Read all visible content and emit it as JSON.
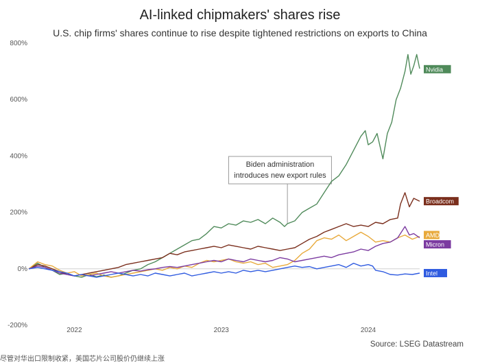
{
  "chart_data": {
    "type": "line",
    "title": "AI-linked chipmakers' shares rise",
    "subtitle": "U.S. chip firms' shares continue to rise despite tightened restrictions on exports to China",
    "ylabel": "",
    "xlabel": "",
    "ylim": [
      -200,
      800
    ],
    "y_ticks": [
      -200,
      0,
      200,
      400,
      600,
      800
    ],
    "y_tick_labels": [
      "-200%",
      "0%",
      "200%",
      "400%",
      "600%",
      "800%"
    ],
    "x_range": [
      2021.69,
      2024.35
    ],
    "x_ticks": [
      2022,
      2023,
      2024
    ],
    "x_tick_labels": [
      "2022",
      "2023",
      "2024"
    ],
    "annotation": {
      "text": [
        "Biden administration",
        "introduces new export rules"
      ],
      "x": 2023.45,
      "y": 160,
      "box_center": [
        2023.4,
        350
      ]
    },
    "series": [
      {
        "name": "Nvidia",
        "color": "#4f8a5a",
        "points": [
          [
            2021.69,
            0
          ],
          [
            2021.75,
            20
          ],
          [
            2021.8,
            5
          ],
          [
            2021.85,
            -5
          ],
          [
            2021.9,
            -20
          ],
          [
            2021.95,
            -15
          ],
          [
            2022.0,
            -25
          ],
          [
            2022.05,
            -30
          ],
          [
            2022.1,
            -20
          ],
          [
            2022.15,
            -28
          ],
          [
            2022.2,
            -22
          ],
          [
            2022.25,
            -30
          ],
          [
            2022.3,
            -25
          ],
          [
            2022.35,
            -15
          ],
          [
            2022.4,
            -5
          ],
          [
            2022.45,
            0
          ],
          [
            2022.5,
            15
          ],
          [
            2022.55,
            25
          ],
          [
            2022.6,
            40
          ],
          [
            2022.65,
            55
          ],
          [
            2022.7,
            70
          ],
          [
            2022.75,
            85
          ],
          [
            2022.8,
            100
          ],
          [
            2022.85,
            105
          ],
          [
            2022.9,
            125
          ],
          [
            2022.95,
            150
          ],
          [
            2023.0,
            145
          ],
          [
            2023.05,
            160
          ],
          [
            2023.1,
            155
          ],
          [
            2023.15,
            170
          ],
          [
            2023.2,
            165
          ],
          [
            2023.25,
            175
          ],
          [
            2023.3,
            160
          ],
          [
            2023.35,
            180
          ],
          [
            2023.4,
            165
          ],
          [
            2023.43,
            150
          ],
          [
            2023.45,
            160
          ],
          [
            2023.5,
            170
          ],
          [
            2023.55,
            200
          ],
          [
            2023.6,
            215
          ],
          [
            2023.65,
            230
          ],
          [
            2023.7,
            270
          ],
          [
            2023.75,
            310
          ],
          [
            2023.8,
            330
          ],
          [
            2023.85,
            370
          ],
          [
            2023.9,
            420
          ],
          [
            2023.95,
            470
          ],
          [
            2023.98,
            490
          ],
          [
            2024.0,
            440
          ],
          [
            2024.03,
            450
          ],
          [
            2024.06,
            480
          ],
          [
            2024.1,
            390
          ],
          [
            2024.13,
            480
          ],
          [
            2024.16,
            520
          ],
          [
            2024.19,
            600
          ],
          [
            2024.22,
            640
          ],
          [
            2024.25,
            700
          ],
          [
            2024.27,
            760
          ],
          [
            2024.29,
            690
          ],
          [
            2024.31,
            720
          ],
          [
            2024.33,
            760
          ],
          [
            2024.35,
            710
          ]
        ]
      },
      {
        "name": "Broadcom",
        "color": "#7a2e1c",
        "points": [
          [
            2021.69,
            0
          ],
          [
            2021.75,
            15
          ],
          [
            2021.8,
            10
          ],
          [
            2021.85,
            0
          ],
          [
            2021.9,
            -10
          ],
          [
            2021.95,
            -20
          ],
          [
            2022.0,
            -25
          ],
          [
            2022.05,
            -20
          ],
          [
            2022.1,
            -15
          ],
          [
            2022.15,
            -10
          ],
          [
            2022.2,
            -5
          ],
          [
            2022.25,
            0
          ],
          [
            2022.3,
            5
          ],
          [
            2022.35,
            15
          ],
          [
            2022.4,
            20
          ],
          [
            2022.45,
            25
          ],
          [
            2022.5,
            30
          ],
          [
            2022.55,
            35
          ],
          [
            2022.6,
            40
          ],
          [
            2022.65,
            55
          ],
          [
            2022.7,
            50
          ],
          [
            2022.75,
            60
          ],
          [
            2022.8,
            65
          ],
          [
            2022.85,
            70
          ],
          [
            2022.9,
            75
          ],
          [
            2022.95,
            80
          ],
          [
            2023.0,
            75
          ],
          [
            2023.05,
            85
          ],
          [
            2023.1,
            80
          ],
          [
            2023.15,
            75
          ],
          [
            2023.2,
            70
          ],
          [
            2023.25,
            80
          ],
          [
            2023.3,
            75
          ],
          [
            2023.35,
            70
          ],
          [
            2023.4,
            65
          ],
          [
            2023.45,
            70
          ],
          [
            2023.5,
            75
          ],
          [
            2023.55,
            90
          ],
          [
            2023.6,
            105
          ],
          [
            2023.65,
            115
          ],
          [
            2023.7,
            130
          ],
          [
            2023.75,
            140
          ],
          [
            2023.8,
            150
          ],
          [
            2023.85,
            160
          ],
          [
            2023.9,
            150
          ],
          [
            2023.95,
            155
          ],
          [
            2024.0,
            150
          ],
          [
            2024.05,
            165
          ],
          [
            2024.1,
            160
          ],
          [
            2024.15,
            175
          ],
          [
            2024.2,
            180
          ],
          [
            2024.22,
            230
          ],
          [
            2024.25,
            270
          ],
          [
            2024.28,
            220
          ],
          [
            2024.31,
            250
          ],
          [
            2024.35,
            240
          ]
        ]
      },
      {
        "name": "AMD",
        "color": "#e8a93a",
        "points": [
          [
            2021.69,
            0
          ],
          [
            2021.75,
            25
          ],
          [
            2021.8,
            15
          ],
          [
            2021.85,
            10
          ],
          [
            2021.9,
            -5
          ],
          [
            2021.95,
            -15
          ],
          [
            2022.0,
            -10
          ],
          [
            2022.05,
            -25
          ],
          [
            2022.1,
            -20
          ],
          [
            2022.15,
            -15
          ],
          [
            2022.2,
            -25
          ],
          [
            2022.25,
            -30
          ],
          [
            2022.3,
            -25
          ],
          [
            2022.35,
            -20
          ],
          [
            2022.4,
            -15
          ],
          [
            2022.45,
            -10
          ],
          [
            2022.5,
            -5
          ],
          [
            2022.55,
            0
          ],
          [
            2022.6,
            -5
          ],
          [
            2022.65,
            5
          ],
          [
            2022.7,
            0
          ],
          [
            2022.75,
            10
          ],
          [
            2022.8,
            5
          ],
          [
            2022.85,
            20
          ],
          [
            2022.9,
            30
          ],
          [
            2022.95,
            25
          ],
          [
            2023.0,
            30
          ],
          [
            2023.05,
            35
          ],
          [
            2023.1,
            25
          ],
          [
            2023.15,
            20
          ],
          [
            2023.2,
            25
          ],
          [
            2023.25,
            15
          ],
          [
            2023.3,
            20
          ],
          [
            2023.35,
            5
          ],
          [
            2023.4,
            10
          ],
          [
            2023.45,
            15
          ],
          [
            2023.5,
            30
          ],
          [
            2023.55,
            55
          ],
          [
            2023.6,
            70
          ],
          [
            2023.65,
            100
          ],
          [
            2023.7,
            110
          ],
          [
            2023.75,
            105
          ],
          [
            2023.8,
            120
          ],
          [
            2023.85,
            100
          ],
          [
            2023.9,
            115
          ],
          [
            2023.95,
            130
          ],
          [
            2024.0,
            115
          ],
          [
            2024.05,
            95
          ],
          [
            2024.1,
            100
          ],
          [
            2024.15,
            95
          ],
          [
            2024.2,
            110
          ],
          [
            2024.25,
            120
          ],
          [
            2024.3,
            105
          ],
          [
            2024.35,
            115
          ]
        ]
      },
      {
        "name": "Micron",
        "color": "#7b3aa0",
        "points": [
          [
            2021.69,
            0
          ],
          [
            2021.75,
            10
          ],
          [
            2021.8,
            5
          ],
          [
            2021.85,
            -5
          ],
          [
            2021.9,
            -15
          ],
          [
            2021.95,
            -20
          ],
          [
            2022.0,
            -25
          ],
          [
            2022.05,
            -20
          ],
          [
            2022.1,
            -25
          ],
          [
            2022.15,
            -20
          ],
          [
            2022.2,
            -15
          ],
          [
            2022.25,
            -10
          ],
          [
            2022.3,
            -15
          ],
          [
            2022.35,
            -10
          ],
          [
            2022.4,
            -5
          ],
          [
            2022.45,
            -8
          ],
          [
            2022.5,
            -3
          ],
          [
            2022.55,
            0
          ],
          [
            2022.6,
            5
          ],
          [
            2022.65,
            8
          ],
          [
            2022.7,
            5
          ],
          [
            2022.75,
            10
          ],
          [
            2022.8,
            15
          ],
          [
            2022.85,
            20
          ],
          [
            2022.9,
            25
          ],
          [
            2022.95,
            30
          ],
          [
            2023.0,
            25
          ],
          [
            2023.05,
            35
          ],
          [
            2023.1,
            30
          ],
          [
            2023.15,
            25
          ],
          [
            2023.2,
            35
          ],
          [
            2023.25,
            30
          ],
          [
            2023.3,
            25
          ],
          [
            2023.35,
            30
          ],
          [
            2023.4,
            40
          ],
          [
            2023.45,
            35
          ],
          [
            2023.5,
            25
          ],
          [
            2023.55,
            30
          ],
          [
            2023.6,
            35
          ],
          [
            2023.65,
            40
          ],
          [
            2023.7,
            45
          ],
          [
            2023.75,
            40
          ],
          [
            2023.8,
            50
          ],
          [
            2023.85,
            55
          ],
          [
            2023.9,
            60
          ],
          [
            2023.95,
            70
          ],
          [
            2024.0,
            65
          ],
          [
            2024.05,
            80
          ],
          [
            2024.1,
            90
          ],
          [
            2024.15,
            95
          ],
          [
            2024.2,
            110
          ],
          [
            2024.25,
            150
          ],
          [
            2024.28,
            120
          ],
          [
            2024.31,
            125
          ],
          [
            2024.35,
            110
          ]
        ]
      },
      {
        "name": "Intel",
        "color": "#2f5be0",
        "points": [
          [
            2021.69,
            0
          ],
          [
            2021.75,
            5
          ],
          [
            2021.8,
            0
          ],
          [
            2021.85,
            -5
          ],
          [
            2021.9,
            -10
          ],
          [
            2021.95,
            -15
          ],
          [
            2022.0,
            -25
          ],
          [
            2022.05,
            -20
          ],
          [
            2022.1,
            -25
          ],
          [
            2022.15,
            -30
          ],
          [
            2022.2,
            -25
          ],
          [
            2022.25,
            -20
          ],
          [
            2022.3,
            -15
          ],
          [
            2022.35,
            -20
          ],
          [
            2022.4,
            -25
          ],
          [
            2022.45,
            -20
          ],
          [
            2022.5,
            -25
          ],
          [
            2022.55,
            -15
          ],
          [
            2022.6,
            -20
          ],
          [
            2022.65,
            -25
          ],
          [
            2022.7,
            -20
          ],
          [
            2022.75,
            -15
          ],
          [
            2022.8,
            -25
          ],
          [
            2022.85,
            -20
          ],
          [
            2022.9,
            -15
          ],
          [
            2022.95,
            -10
          ],
          [
            2023.0,
            -15
          ],
          [
            2023.05,
            -10
          ],
          [
            2023.1,
            -15
          ],
          [
            2023.15,
            -5
          ],
          [
            2023.2,
            -10
          ],
          [
            2023.25,
            -5
          ],
          [
            2023.3,
            -10
          ],
          [
            2023.35,
            -5
          ],
          [
            2023.4,
            0
          ],
          [
            2023.45,
            5
          ],
          [
            2023.5,
            10
          ],
          [
            2023.55,
            5
          ],
          [
            2023.6,
            8
          ],
          [
            2023.65,
            0
          ],
          [
            2023.7,
            5
          ],
          [
            2023.75,
            10
          ],
          [
            2023.8,
            15
          ],
          [
            2023.85,
            5
          ],
          [
            2023.9,
            20
          ],
          [
            2023.95,
            10
          ],
          [
            2024.0,
            15
          ],
          [
            2024.03,
            10
          ],
          [
            2024.05,
            -5
          ],
          [
            2024.1,
            -10
          ],
          [
            2024.15,
            -20
          ],
          [
            2024.2,
            -22
          ],
          [
            2024.25,
            -18
          ],
          [
            2024.3,
            -20
          ],
          [
            2024.35,
            -15
          ]
        ]
      }
    ],
    "end_labels": [
      {
        "name": "Nvidia",
        "y": 708
      },
      {
        "name": "Broadcom",
        "y": 240
      },
      {
        "name": "AMD",
        "y": 120
      },
      {
        "name": "Micron",
        "y": 87
      },
      {
        "name": "Intel",
        "y": -15
      }
    ],
    "source": "Source: LSEG Datastream"
  },
  "footer_text": "尽管对华出口限制收紧，美国芯片公司股价仍继续上涨"
}
